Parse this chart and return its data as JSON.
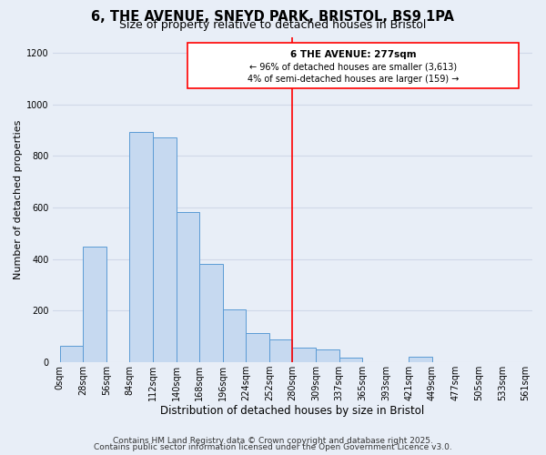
{
  "title1": "6, THE AVENUE, SNEYD PARK, BRISTOL, BS9 1PA",
  "title2": "Size of property relative to detached houses in Bristol",
  "xlabel": "Distribution of detached houses by size in Bristol",
  "ylabel": "Number of detached properties",
  "bar_heights": [
    65,
    448,
    0,
    893,
    873,
    583,
    380,
    205,
    113,
    88,
    55,
    48,
    18,
    0,
    0,
    20,
    0,
    0,
    0,
    0
  ],
  "bar_color": "#c6d9f0",
  "bar_edgecolor": "#5b9bd5",
  "grid_color": "#d0d8e8",
  "bg_color": "#e8eef7",
  "redline_x": 10,
  "annotation_title": "6 THE AVENUE: 277sqm",
  "annotation_line1": "← 96% of detached houses are smaller (3,613)",
  "annotation_line2": "4% of semi-detached houses are larger (159) →",
  "ylim": [
    0,
    1260
  ],
  "yticks": [
    0,
    200,
    400,
    600,
    800,
    1000,
    1200
  ],
  "xtick_labels": [
    "0sqm",
    "28sqm",
    "56sqm",
    "84sqm",
    "112sqm",
    "140sqm",
    "168sqm",
    "196sqm",
    "224sqm",
    "252sqm",
    "280sqm",
    "309sqm",
    "337sqm",
    "365sqm",
    "393sqm",
    "421sqm",
    "449sqm",
    "477sqm",
    "505sqm",
    "533sqm",
    "561sqm"
  ],
  "footnote1": "Contains HM Land Registry data © Crown copyright and database right 2025.",
  "footnote2": "Contains public sector information licensed under the Open Government Licence v3.0.",
  "title1_fontsize": 10.5,
  "title2_fontsize": 9,
  "xlabel_fontsize": 8.5,
  "ylabel_fontsize": 8,
  "tick_fontsize": 7,
  "footnote_fontsize": 6.5,
  "n_bins": 20,
  "n_ticks": 21
}
